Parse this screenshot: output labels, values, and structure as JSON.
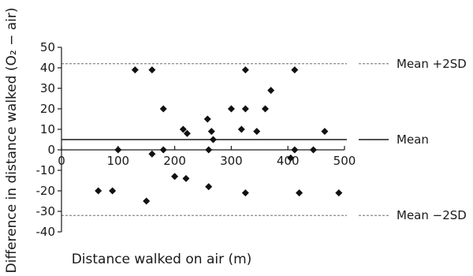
{
  "chart_data": {
    "type": "scatter",
    "xlabel": "Distance walked on air (m)",
    "ylabel": "Difference in distance walked (O₂ − air)",
    "xlim": [
      0,
      500
    ],
    "ylim": [
      -40,
      50
    ],
    "x_ticks": [
      0,
      100,
      200,
      300,
      400,
      500
    ],
    "y_ticks": [
      -40,
      -30,
      -20,
      -10,
      0,
      10,
      20,
      30,
      40,
      50
    ],
    "reference_lines": [
      {
        "label": "Mean +2SD",
        "y": 42,
        "style": "dashed"
      },
      {
        "label": "Mean",
        "y": 5,
        "style": "solid"
      },
      {
        "label": "Mean −2SD",
        "y": -32,
        "style": "dashed"
      }
    ],
    "points": [
      {
        "x": 65,
        "y": -20
      },
      {
        "x": 90,
        "y": -20
      },
      {
        "x": 100,
        "y": 0
      },
      {
        "x": 130,
        "y": 39
      },
      {
        "x": 150,
        "y": -25
      },
      {
        "x": 160,
        "y": 39
      },
      {
        "x": 160,
        "y": -2
      },
      {
        "x": 180,
        "y": 20
      },
      {
        "x": 180,
        "y": 0
      },
      {
        "x": 200,
        "y": -13
      },
      {
        "x": 215,
        "y": 10
      },
      {
        "x": 220,
        "y": -14
      },
      {
        "x": 222,
        "y": 8
      },
      {
        "x": 258,
        "y": 15
      },
      {
        "x": 260,
        "y": -18
      },
      {
        "x": 260,
        "y": 0
      },
      {
        "x": 265,
        "y": 9
      },
      {
        "x": 268,
        "y": 5
      },
      {
        "x": 300,
        "y": 20
      },
      {
        "x": 318,
        "y": 10
      },
      {
        "x": 325,
        "y": 20
      },
      {
        "x": 325,
        "y": 39
      },
      {
        "x": 325,
        "y": -21
      },
      {
        "x": 345,
        "y": 9
      },
      {
        "x": 360,
        "y": 20
      },
      {
        "x": 370,
        "y": 29
      },
      {
        "x": 405,
        "y": -4
      },
      {
        "x": 412,
        "y": 39
      },
      {
        "x": 412,
        "y": 0
      },
      {
        "x": 420,
        "y": -21
      },
      {
        "x": 445,
        "y": 0
      },
      {
        "x": 465,
        "y": 9
      },
      {
        "x": 490,
        "y": -21
      }
    ]
  }
}
